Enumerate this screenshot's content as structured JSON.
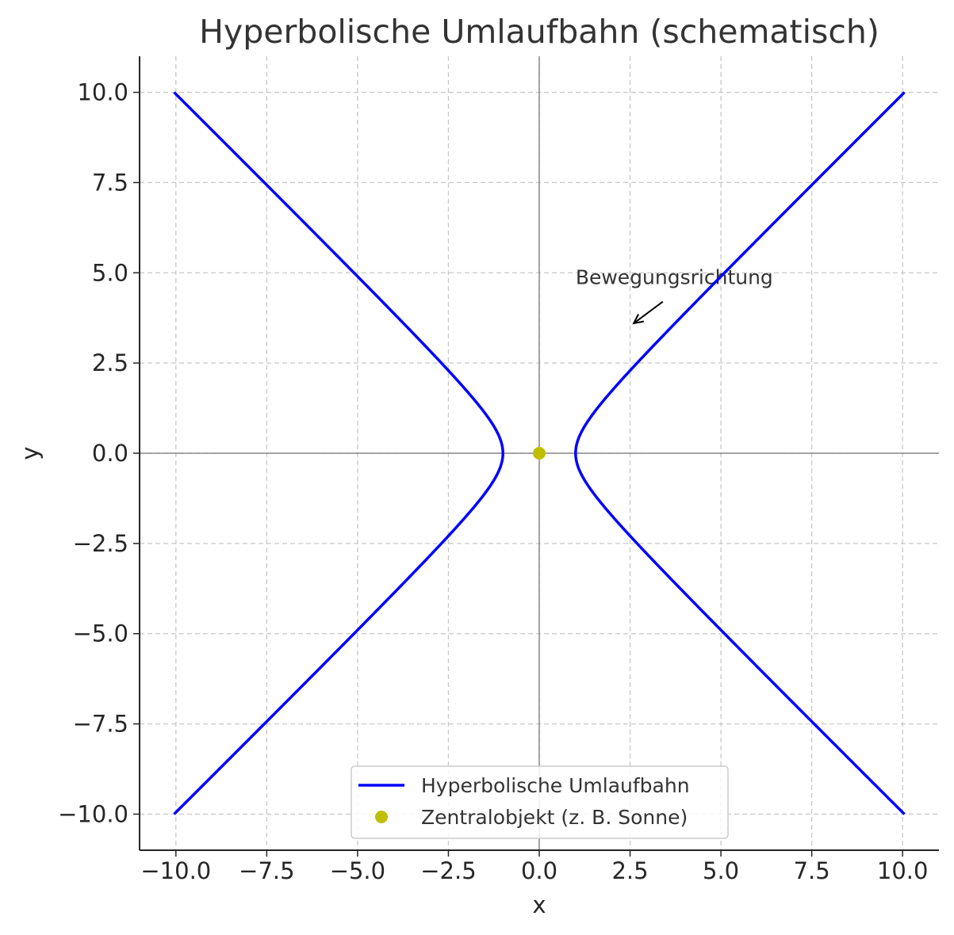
{
  "chart_data": {
    "type": "line",
    "title": "Hyperbolische Umlaufbahn (schematisch)",
    "xlabel": "x",
    "ylabel": "y",
    "xlim": [
      -11,
      11
    ],
    "ylim": [
      -11,
      11
    ],
    "xticks": [
      -10,
      -7.5,
      -5,
      -2.5,
      0,
      2.5,
      5,
      7.5,
      10
    ],
    "yticks": [
      -10,
      -7.5,
      -5,
      -2.5,
      0,
      2.5,
      5,
      7.5,
      10
    ],
    "xtick_labels": [
      "−10.0",
      "−7.5",
      "−5.0",
      "−2.5",
      "0.0",
      "2.5",
      "5.0",
      "7.5",
      "10.0"
    ],
    "ytick_labels": [
      "−10.0",
      "−7.5",
      "−5.0",
      "−2.5",
      "0.0",
      "2.5",
      "5.0",
      "7.5",
      "10.0"
    ],
    "grid": true,
    "grid_style": "dashed",
    "legend_placement": "bottom-center",
    "series": [
      {
        "name": "Hyperbolische Umlaufbahn",
        "kind": "line",
        "color": "#0000ff",
        "equation": "x^2 - y^2 = 1",
        "y_range": [
          -10,
          10
        ]
      },
      {
        "name": "Zentralobjekt (z. B. Sonne)",
        "kind": "point",
        "color": "#bfbf00",
        "x": [
          0
        ],
        "y": [
          0
        ]
      }
    ],
    "annotations": [
      {
        "text": "Bewegungsrichtung",
        "text_x": 1.0,
        "text_y": 4.6,
        "arrow_from": [
          3.4,
          4.2
        ],
        "arrow_to": [
          2.6,
          3.6
        ]
      }
    ]
  }
}
